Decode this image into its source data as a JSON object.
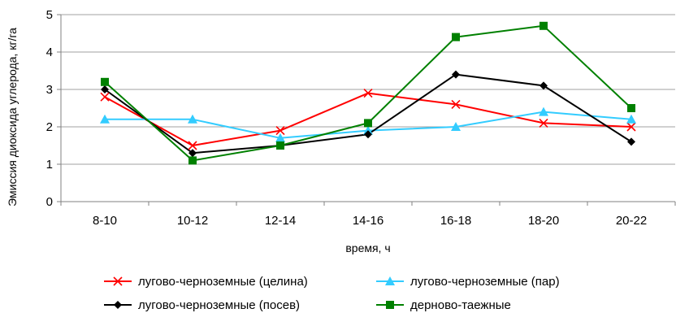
{
  "chart_data": {
    "type": "line",
    "title": "",
    "xlabel": "время, ч",
    "ylabel": "Эмиссия диоксида углерода, кг/га",
    "ylim": [
      0,
      5
    ],
    "yticks": [
      0,
      1,
      2,
      3,
      4,
      5
    ],
    "categories": [
      "8-10",
      "10-12",
      "12-14",
      "14-16",
      "16-18",
      "18-20",
      "20-22"
    ],
    "grid": "horizontal",
    "legend_position": "bottom",
    "series": [
      {
        "name": "лугово-черноземные (целина)",
        "color": "#ff0000",
        "marker": "x-mark",
        "values": [
          2.8,
          1.5,
          1.9,
          2.9,
          2.6,
          2.1,
          2.0
        ]
      },
      {
        "name": "лугово-черноземные (пар)",
        "color": "#33ccff",
        "marker": "triangle",
        "values": [
          2.2,
          2.2,
          1.7,
          1.9,
          2.0,
          2.4,
          2.2
        ]
      },
      {
        "name": "лугово-черноземные (посев)",
        "color": "#000000",
        "marker": "diamond",
        "values": [
          3.0,
          1.3,
          1.5,
          1.8,
          3.4,
          3.1,
          1.6
        ]
      },
      {
        "name": "дерново-таежные",
        "color": "#008000",
        "marker": "square",
        "values": [
          3.2,
          1.1,
          1.5,
          2.1,
          4.4,
          4.7,
          2.5
        ]
      }
    ]
  }
}
